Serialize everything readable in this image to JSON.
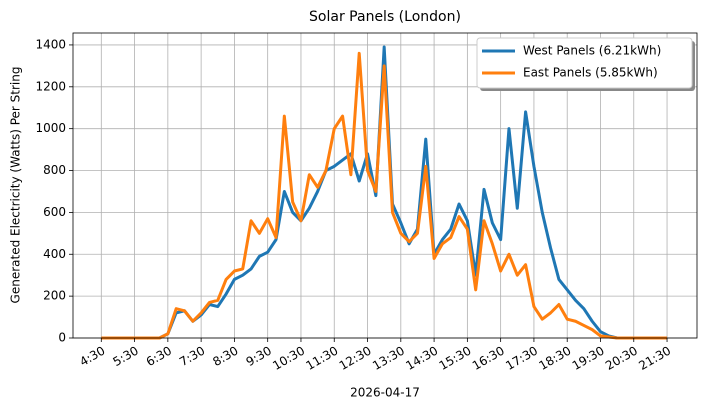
{
  "chart_data": {
    "type": "line",
    "title": "Solar Panels (London)",
    "x_label": "2026-04-17",
    "y_label": "Generated Electricity (Watts) Per String",
    "x": [
      4.5,
      4.75,
      5,
      5.25,
      5.5,
      5.75,
      6,
      6.25,
      6.5,
      6.75,
      7,
      7.25,
      7.5,
      7.75,
      8,
      8.25,
      8.5,
      8.75,
      9,
      9.25,
      9.5,
      9.75,
      10,
      10.25,
      10.5,
      10.75,
      11,
      11.25,
      11.5,
      11.75,
      12,
      12.25,
      12.5,
      12.75,
      13,
      13.25,
      13.5,
      13.75,
      14,
      14.25,
      14.5,
      14.75,
      15,
      15.25,
      15.5,
      15.75,
      16,
      16.25,
      16.5,
      16.75,
      17,
      17.25,
      17.5,
      17.75,
      18,
      18.25,
      18.5,
      18.75,
      19,
      19.25,
      19.5,
      19.75,
      20,
      20.25,
      20.5,
      20.75,
      21,
      21.25,
      21.5
    ],
    "series": [
      {
        "name": "West Panels (6.21kWh)",
        "color": "#1f77b4",
        "values": [
          0,
          0,
          0,
          0,
          0,
          0,
          0,
          0,
          20,
          120,
          130,
          80,
          110,
          160,
          150,
          210,
          280,
          300,
          330,
          390,
          410,
          470,
          700,
          600,
          560,
          620,
          700,
          800,
          820,
          850,
          880,
          750,
          880,
          680,
          1390,
          640,
          550,
          450,
          520,
          950,
          400,
          470,
          520,
          640,
          560,
          300,
          710,
          550,
          470,
          1000,
          620,
          1080,
          820,
          600,
          430,
          280,
          230,
          180,
          140,
          80,
          30,
          10,
          0,
          0,
          0,
          0,
          0,
          0,
          0
        ]
      },
      {
        "name": "East Panels (5.85kWh)",
        "color": "#ff7f0e",
        "values": [
          0,
          0,
          0,
          0,
          0,
          0,
          0,
          0,
          20,
          140,
          130,
          80,
          120,
          170,
          180,
          280,
          320,
          330,
          560,
          500,
          570,
          480,
          1060,
          650,
          560,
          780,
          720,
          800,
          1000,
          1060,
          780,
          1360,
          800,
          700,
          1300,
          600,
          500,
          460,
          500,
          820,
          380,
          450,
          480,
          580,
          520,
          230,
          560,
          450,
          320,
          400,
          300,
          350,
          150,
          90,
          120,
          160,
          90,
          80,
          60,
          40,
          10,
          5,
          0,
          0,
          0,
          0,
          0,
          0,
          0
        ]
      }
    ],
    "xlim": [
      3.65,
      22.4
    ],
    "ylim": [
      0,
      1457
    ],
    "xticks": [
      {
        "value": 4.5,
        "label": "4:30"
      },
      {
        "value": 5.5,
        "label": "5:30"
      },
      {
        "value": 6.5,
        "label": "6:30"
      },
      {
        "value": 7.5,
        "label": "7:30"
      },
      {
        "value": 8.5,
        "label": "8:30"
      },
      {
        "value": 9.5,
        "label": "9:30"
      },
      {
        "value": 10.5,
        "label": "10:30"
      },
      {
        "value": 11.5,
        "label": "11:30"
      },
      {
        "value": 12.5,
        "label": "12:30"
      },
      {
        "value": 13.5,
        "label": "13:30"
      },
      {
        "value": 14.5,
        "label": "14:30"
      },
      {
        "value": 15.5,
        "label": "15:30"
      },
      {
        "value": 16.5,
        "label": "16:30"
      },
      {
        "value": 17.5,
        "label": "17:30"
      },
      {
        "value": 18.5,
        "label": "18:30"
      },
      {
        "value": 19.5,
        "label": "19:30"
      },
      {
        "value": 20.5,
        "label": "20:30"
      },
      {
        "value": 21.5,
        "label": "21:30"
      }
    ],
    "yticks": [
      0,
      200,
      400,
      600,
      800,
      1000,
      1200,
      1400
    ],
    "grid": true,
    "legend": "upper right"
  }
}
